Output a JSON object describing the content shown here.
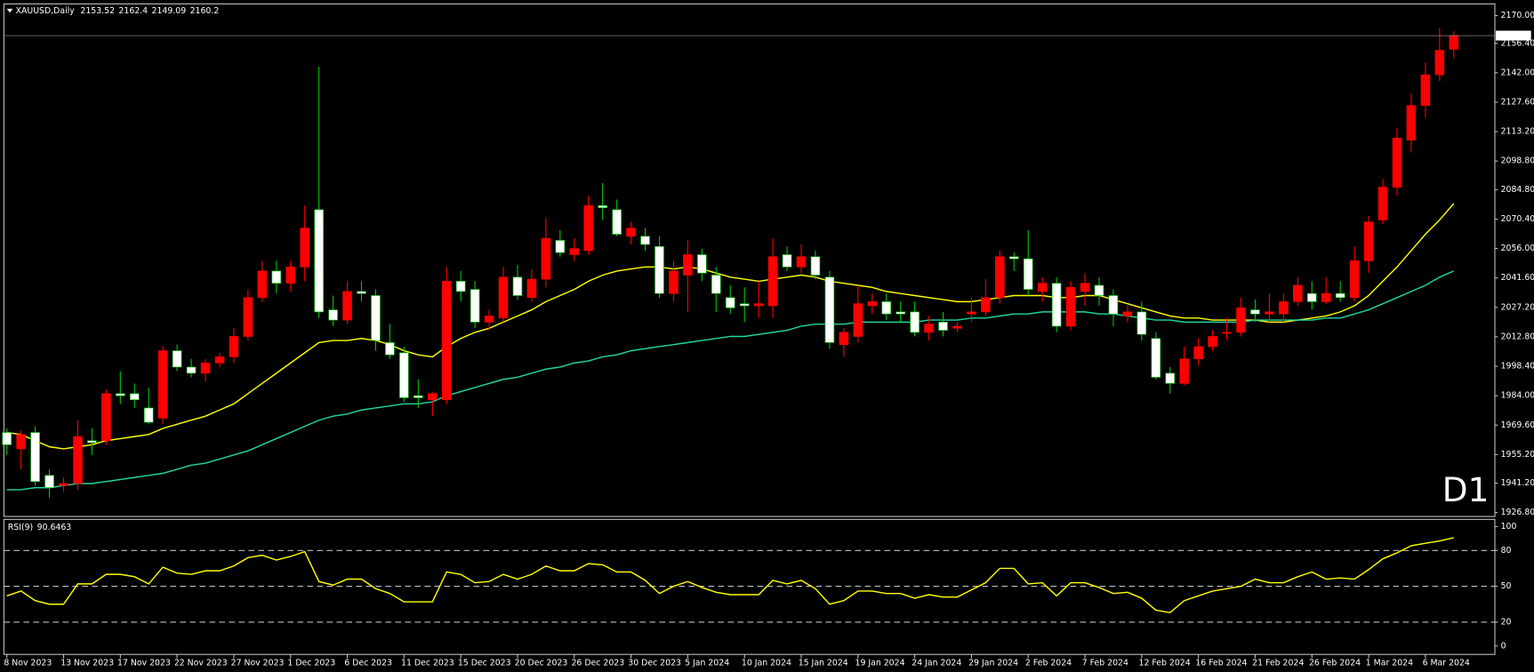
{
  "chart_data": [
    {
      "type": "candlestick",
      "title": "XAUUSD,Daily",
      "annotation": "D1",
      "annotation_color": "#e00000",
      "up_color": "#ff0000",
      "down_color": "#ffffff",
      "wick_down_color": "#00c800",
      "categories": [
        "8 Nov 2023",
        null,
        null,
        null,
        "13 Nov 2023",
        null,
        null,
        null,
        "17 Nov 2023",
        null,
        null,
        null,
        "22 Nov 2023",
        null,
        null,
        null,
        "27 Nov 2023",
        null,
        null,
        null,
        "1 Dec 2023",
        null,
        null,
        null,
        "6 Dec 2023",
        null,
        null,
        null,
        "11 Dec 2023",
        null,
        null,
        null,
        "15 Dec 2023",
        null,
        null,
        null,
        "20 Dec 2023",
        null,
        null,
        null,
        "26 Dec 2023",
        null,
        null,
        null,
        "30 Dec 2023",
        null,
        null,
        null,
        "5 Jan 2024",
        null,
        null,
        null,
        "10 Jan 2024",
        null,
        null,
        null,
        "15 Jan 2024",
        null,
        null,
        null,
        "19 Jan 2024",
        null,
        null,
        null,
        "24 Jan 2024",
        null,
        null,
        null,
        "29 Jan 2024",
        null,
        null,
        null,
        "2 Feb 2024",
        null,
        null,
        null,
        "7 Feb 2024",
        null,
        null,
        null,
        "12 Feb 2024",
        null,
        null,
        null,
        "16 Feb 2024",
        null,
        null,
        null,
        "21 Feb 2024",
        null,
        null,
        null,
        "26 Feb 2024",
        null,
        null,
        null,
        "1 Mar 2024",
        null,
        null,
        null,
        "6 Mar 2024",
        null,
        null
      ],
      "open": [
        1966,
        1958,
        1966,
        1945,
        1940,
        1941,
        1962,
        1962,
        1985,
        1985,
        1978,
        1973,
        2006,
        1998,
        1995,
        2000,
        2003,
        2013,
        2032,
        2045,
        2039,
        2047,
        2075,
        2026,
        2021,
        2035,
        2033,
        2010,
        2005,
        1984,
        1982,
        1982,
        2040,
        2036,
        2020,
        2022,
        2042,
        2032,
        2041,
        2060,
        2053,
        2055,
        2077,
        2075,
        2062,
        2062,
        2057,
        2034,
        2043,
        2053,
        2043,
        2032,
        2029,
        2028,
        2028,
        2053,
        2047,
        2052,
        2042,
        2009,
        2013,
        2028,
        2030,
        2025,
        2025,
        2015,
        2020,
        2017,
        2024,
        2025,
        2032,
        2052,
        2051,
        2035,
        2039,
        2018,
        2035,
        2038,
        2033,
        2023,
        2025,
        2012,
        1995,
        1990,
        2002,
        2008,
        2015,
        2015,
        2026,
        2024,
        2024,
        2030,
        2034,
        2030,
        2034,
        2032,
        2050,
        2070,
        2086,
        2109,
        2126,
        2141,
        2153.52
      ],
      "high": [
        1968,
        1967,
        1969,
        1948,
        1944,
        1972,
        1968,
        1987,
        1996,
        1990,
        1988,
        2008,
        2009,
        2002,
        2002,
        2005,
        2017,
        2036,
        2050,
        2050,
        2050,
        2077,
        2145,
        2033,
        2040,
        2040,
        2036,
        2019,
        2008,
        1992,
        1986,
        2047,
        2045,
        2040,
        2026,
        2047,
        2048,
        2046,
        2071,
        2065,
        2061,
        2082,
        2088,
        2080,
        2069,
        2066,
        2062,
        2050,
        2060,
        2056,
        2047,
        2038,
        2037,
        2040,
        2061,
        2057,
        2058,
        2055,
        2045,
        2017,
        2038,
        2034,
        2034,
        2030,
        2030,
        2023,
        2025,
        2020,
        2032,
        2041,
        2055,
        2054,
        2065,
        2042,
        2042,
        2040,
        2044,
        2042,
        2036,
        2028,
        2030,
        2015,
        1998,
        2008,
        2012,
        2016,
        2022,
        2032,
        2031,
        2034,
        2034,
        2042,
        2040,
        2042,
        2040,
        2057,
        2072,
        2090,
        2115,
        2132,
        2147,
        2164,
        2162.4
      ],
      "low": [
        1955,
        1948,
        1940,
        1934,
        1937,
        1938,
        1955,
        1960,
        1980,
        1978,
        1970,
        1970,
        1996,
        1993,
        1991,
        1998,
        2000,
        2011,
        2030,
        2034,
        2035,
        2040,
        2022,
        2018,
        2019,
        2030,
        2006,
        2002,
        1981,
        1978,
        1974,
        1980,
        2030,
        2017,
        2016,
        2020,
        2031,
        2030,
        2037,
        2052,
        2050,
        2053,
        2070,
        2062,
        2058,
        2055,
        2032,
        2030,
        2025,
        2040,
        2025,
        2024,
        2020,
        2022,
        2022,
        2045,
        2044,
        2041,
        2007,
        2003,
        2010,
        2024,
        2021,
        2020,
        2013,
        2011,
        2013,
        2015,
        2020,
        2023,
        2029,
        2045,
        2033,
        2030,
        2015,
        2016,
        2028,
        2028,
        2018,
        2020,
        2011,
        1992,
        1985,
        1989,
        1999,
        2006,
        2011,
        2013,
        2020,
        2020,
        2020,
        2028,
        2026,
        2029,
        2030,
        2030,
        2044,
        2068,
        2082,
        2103,
        2120,
        2138,
        2149.09
      ],
      "close": [
        1960,
        1965,
        1942,
        1939,
        1941,
        1964,
        1961,
        1985,
        1984,
        1982,
        1971,
        2006,
        1998,
        1995,
        2000,
        2003,
        2013,
        2032,
        2045,
        2039,
        2047,
        2066,
        2025,
        2021,
        2035,
        2034,
        2011,
        2004,
        1983,
        1983,
        1985,
        2040,
        2035,
        2020,
        2023,
        2042,
        2033,
        2041,
        2061,
        2054,
        2056,
        2077,
        2076,
        2063,
        2066,
        2058,
        2034,
        2045,
        2053,
        2044,
        2034,
        2027,
        2028,
        2029,
        2052,
        2047,
        2052,
        2043,
        2010,
        2015,
        2029,
        2030,
        2024,
        2024,
        2015,
        2019,
        2016,
        2018,
        2025,
        2032,
        2052,
        2051,
        2036,
        2039,
        2018,
        2037,
        2039,
        2033,
        2024,
        2025,
        2014,
        1993,
        1990,
        2002,
        2008,
        2013,
        2015,
        2027,
        2024,
        2025,
        2030,
        2038,
        2030,
        2034,
        2032,
        2050,
        2069,
        2086,
        2110,
        2126,
        2141,
        2153,
        2160.2
      ],
      "series": [
        {
          "color": "#ffff00",
          "values": [
            1966,
            1965,
            1962,
            1959,
            1958,
            1959,
            1960,
            1962,
            1963,
            1964,
            1965,
            1968,
            1970,
            1972,
            1974,
            1977,
            1980,
            1985,
            1990,
            1995,
            2000,
            2005,
            2010,
            2011,
            2011,
            2012,
            2011,
            2009,
            2006,
            2004,
            2003,
            2008,
            2012,
            2015,
            2017,
            2020,
            2023,
            2026,
            2030,
            2033,
            2036,
            2040,
            2043,
            2045,
            2046,
            2047,
            2047,
            2046,
            2047,
            2046,
            2044,
            2042,
            2041,
            2040,
            2041,
            2042,
            2043,
            2042,
            2040,
            2039,
            2038,
            2037,
            2035,
            2034,
            2033,
            2032,
            2031,
            2030,
            2030,
            2031,
            2032,
            2033,
            2033,
            2033,
            2032,
            2032,
            2033,
            2033,
            2031,
            2029,
            2027,
            2025,
            2023,
            2022,
            2022,
            2021,
            2021,
            2021,
            2021,
            2020,
            2020,
            2021,
            2022,
            2023,
            2025,
            2028,
            2033,
            2040,
            2047,
            2055,
            2063,
            2070,
            2078
          ]
        },
        {
          "color": "#20d8a0",
          "values": [
            1938,
            1938,
            1939,
            1939,
            1940,
            1941,
            1941,
            1942,
            1943,
            1944,
            1945,
            1946,
            1948,
            1950,
            1951,
            1953,
            1955,
            1957,
            1960,
            1963,
            1966,
            1969,
            1972,
            1974,
            1975,
            1977,
            1978,
            1979,
            1980,
            1980,
            1981,
            1984,
            1986,
            1988,
            1990,
            1992,
            1993,
            1995,
            1997,
            1998,
            2000,
            2001,
            2003,
            2004,
            2006,
            2007,
            2008,
            2009,
            2010,
            2011,
            2012,
            2013,
            2013,
            2014,
            2015,
            2016,
            2018,
            2019,
            2019,
            2019,
            2020,
            2020,
            2020,
            2020,
            2020,
            2021,
            2021,
            2021,
            2022,
            2022,
            2023,
            2024,
            2024,
            2025,
            2025,
            2025,
            2025,
            2024,
            2024,
            2023,
            2022,
            2021,
            2021,
            2020,
            2020,
            2020,
            2020,
            2020,
            2021,
            2021,
            2021,
            2021,
            2021,
            2022,
            2022,
            2024,
            2026,
            2029,
            2032,
            2035,
            2038,
            2042,
            2045
          ]
        }
      ],
      "ylim": [
        1924.9,
        2175.7
      ],
      "yticks": [
        {
          "value": 2170,
          "label": "2170.00"
        },
        {
          "value": 2156.4,
          "label": "2156.40"
        },
        {
          "value": 2142,
          "label": "2142.00"
        },
        {
          "value": 2127.6,
          "label": "2127.60"
        },
        {
          "value": 2113.2,
          "label": "2113.20"
        },
        {
          "value": 2098.8,
          "label": "2098.80"
        },
        {
          "value": 2084.8,
          "label": "2084.80"
        },
        {
          "value": 2070.4,
          "label": "2070.40"
        },
        {
          "value": 2056,
          "label": "2056.00"
        },
        {
          "value": 2041.6,
          "label": "2041.60"
        },
        {
          "value": 2027.2,
          "label": "2027.20"
        },
        {
          "value": 2012.8,
          "label": "2012.80"
        },
        {
          "value": 1998.4,
          "label": "1998.40"
        },
        {
          "value": 1984,
          "label": "1984.00"
        },
        {
          "value": 1969.6,
          "label": "1969.60"
        },
        {
          "value": 1955.2,
          "label": "1955.20"
        },
        {
          "value": 1941.2,
          "label": "1941.20"
        },
        {
          "value": 1926.8,
          "label": "1926.80"
        }
      ]
    },
    {
      "type": "line",
      "title": "RSI(9)",
      "levels": [
        80,
        50,
        20
      ],
      "series": [
        {
          "color": "#ffff00",
          "values": [
            42,
            46,
            38,
            35,
            35,
            52,
            52,
            60,
            60,
            58,
            52,
            66,
            61,
            60,
            63,
            63,
            67,
            74,
            76,
            72,
            75,
            79,
            54,
            51,
            56,
            56,
            48,
            44,
            37,
            37,
            37,
            62,
            60,
            53,
            54,
            60,
            56,
            60,
            67,
            63,
            63,
            69,
            68,
            62,
            62,
            55,
            44,
            50,
            54,
            49,
            45,
            43,
            43,
            43,
            55,
            52,
            55,
            48,
            35,
            38,
            46,
            46,
            44,
            44,
            40,
            43,
            41,
            41,
            47,
            53,
            65,
            65,
            52,
            53,
            42,
            53,
            53,
            49,
            44,
            45,
            40,
            30,
            28,
            38,
            42,
            46,
            48,
            50,
            56,
            53,
            53,
            58,
            62,
            56,
            57,
            56,
            64,
            73,
            78,
            84,
            86,
            88,
            90.6463
          ]
        }
      ],
      "ylim": [
        -7,
        106
      ],
      "yticks": [
        100,
        80,
        50,
        20,
        0
      ]
    }
  ]
}
